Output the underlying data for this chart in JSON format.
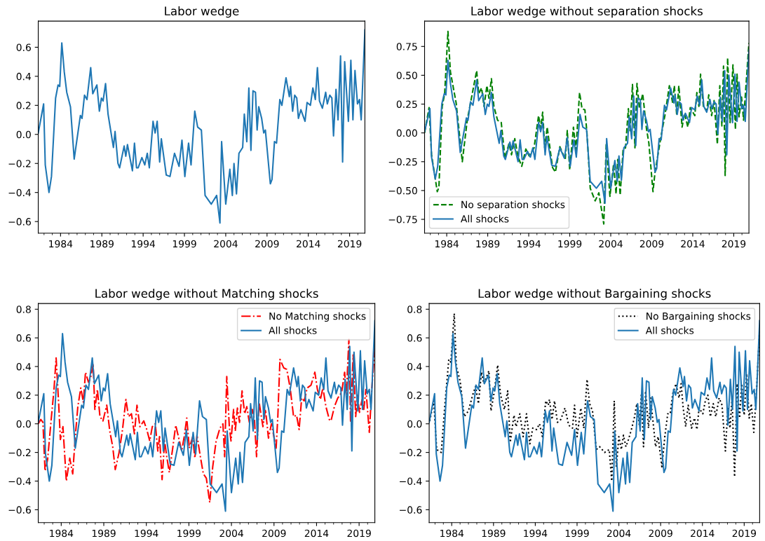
{
  "chart_data": [
    {
      "type": "line",
      "title": "Labor wedge",
      "xlim": [
        1981.3,
        2020.85
      ],
      "ylim": [
        -0.68,
        0.78
      ],
      "xticks": [
        1984,
        1989,
        1994,
        1999,
        2004,
        2009,
        2014,
        2019
      ],
      "yticks": [
        {
          "value": -0.6,
          "label": "−0.6"
        },
        {
          "value": -0.4,
          "label": "−0.4"
        },
        {
          "value": -0.2,
          "label": "−0.2"
        },
        {
          "value": 0.0,
          "label": "0.0"
        },
        {
          "value": 0.2,
          "label": "0.2"
        },
        {
          "value": 0.4,
          "label": "0.4"
        },
        {
          "value": 0.6,
          "label": "0.6"
        }
      ],
      "series": [
        {
          "color": "#1f77b4",
          "line_style": "solid",
          "x": [
            1981.3,
            1981.95,
            1982.15,
            1982.6,
            1982.9,
            1983.4,
            1983.7,
            1983.9,
            1984.15,
            1984.45,
            1984.75,
            1985.2,
            1985.65,
            1986.4,
            1986.6,
            1986.9,
            1987.2,
            1987.65,
            1987.9,
            1988.4,
            1988.7,
            1988.95,
            1989.15,
            1989.45,
            1989.75,
            1990.4,
            1990.6,
            1990.95,
            1991.15,
            1991.7,
            1991.9,
            1992.1,
            1992.7,
            1992.95,
            1993.2,
            1993.4,
            1993.85,
            1994.2,
            1994.5,
            1994.75,
            1995.2,
            1995.45,
            1995.7,
            1996.0,
            1996.2,
            1996.8,
            1997.25,
            1997.8,
            1998.35,
            1998.7,
            1999.05,
            1999.5,
            1999.8,
            2000.25,
            2000.6,
            2001.05,
            2001.5,
            2002.25,
            2002.9,
            2003.3,
            2003.5,
            2004.0,
            2004.5,
            2004.8,
            2005.0,
            2005.3,
            2005.6,
            2006.05,
            2006.25,
            2006.55,
            2006.8,
            2007.05,
            2007.3,
            2007.6,
            2007.8,
            2008.0,
            2008.35,
            2008.6,
            2008.8,
            2009.4,
            2009.6,
            2009.9,
            2010.15,
            2010.55,
            2010.8,
            2011.3,
            2011.7,
            2011.85,
            2012.1,
            2012.35,
            2012.6,
            2012.8,
            2013.1,
            2013.6,
            2013.85,
            2014.25,
            2014.55,
            2014.85,
            2015.1,
            2015.35,
            2015.7,
            2016.1,
            2016.3,
            2016.6,
            2016.85,
            2017.05,
            2017.35,
            2017.6,
            2017.9,
            2018.15,
            2018.4,
            2018.85,
            2019.15,
            2019.4,
            2019.65,
            2019.95,
            2020.2,
            2020.4,
            2020.85
          ],
          "values": [
            0.01,
            0.21,
            -0.21,
            -0.4,
            -0.29,
            0.25,
            0.34,
            0.33,
            0.63,
            0.43,
            0.29,
            0.19,
            -0.17,
            0.13,
            0.11,
            0.27,
            0.24,
            0.46,
            0.28,
            0.34,
            0.16,
            0.25,
            0.23,
            0.35,
            0.14,
            -0.09,
            0.02,
            -0.2,
            -0.23,
            -0.08,
            -0.15,
            -0.07,
            -0.25,
            -0.06,
            -0.23,
            -0.23,
            -0.16,
            -0.21,
            -0.13,
            -0.23,
            0.09,
            0.01,
            0.09,
            -0.19,
            -0.03,
            -0.28,
            -0.29,
            -0.13,
            -0.22,
            -0.04,
            -0.29,
            -0.06,
            -0.21,
            0.16,
            0.05,
            0.03,
            -0.42,
            -0.48,
            -0.42,
            -0.61,
            -0.05,
            -0.48,
            -0.24,
            -0.42,
            -0.2,
            -0.41,
            -0.13,
            -0.09,
            0.14,
            -0.05,
            0.32,
            -0.11,
            0.3,
            0.29,
            0.03,
            0.19,
            0.11,
            0.01,
            0.03,
            -0.34,
            -0.31,
            -0.05,
            -0.06,
            0.24,
            0.2,
            0.39,
            0.26,
            0.33,
            0.16,
            0.27,
            0.25,
            0.11,
            0.17,
            0.09,
            0.22,
            0.2,
            0.32,
            0.24,
            0.46,
            0.23,
            0.18,
            0.29,
            0.21,
            0.27,
            0.25,
            -0.01,
            0.31,
            0.1,
            0.54,
            -0.19,
            0.5,
            0.09,
            0.51,
            0.1,
            0.44,
            0.21,
            0.24,
            0.1,
            0.72
          ]
        }
      ]
    },
    {
      "type": "line",
      "title": "Labor wedge without separation shocks",
      "xlim": [
        1981.3,
        2020.85
      ],
      "ylim": [
        -0.87,
        0.97
      ],
      "xticks": [
        1984,
        1989,
        1994,
        1999,
        2004,
        2009,
        2014,
        2019
      ],
      "yticks": [
        {
          "value": -0.75,
          "label": "−0.75"
        },
        {
          "value": -0.5,
          "label": "−0.50"
        },
        {
          "value": -0.25,
          "label": "−0.25"
        },
        {
          "value": 0.0,
          "label": "0.00"
        },
        {
          "value": 0.25,
          "label": "0.25"
        },
        {
          "value": 0.5,
          "label": "0.50"
        },
        {
          "value": 0.75,
          "label": "0.75"
        }
      ],
      "legend": "bottom left",
      "series": [
        {
          "name": "No separation shocks",
          "color": "#008000",
          "line_style": "dashed",
          "x": [
            1981.3,
            1981.85,
            1982.15,
            1982.85,
            1983.05,
            1983.45,
            1983.75,
            1984.15,
            1984.45,
            1985.15,
            1985.9,
            1986.5,
            1986.9,
            1987.65,
            1987.9,
            1988.25,
            1988.55,
            1988.9,
            1989.15,
            1989.45,
            1989.75,
            1990.2,
            1990.65,
            1991.1,
            1991.6,
            1991.9,
            1992.3,
            1992.7,
            1993.15,
            1993.65,
            1994.05,
            1994.65,
            1995.2,
            1995.45,
            1995.7,
            1995.95,
            1996.25,
            1996.9,
            1997.25,
            1997.8,
            1998.45,
            1998.7,
            1999.0,
            1999.45,
            1999.75,
            2000.2,
            2000.5,
            2000.85,
            2001.1,
            2001.5,
            2002.1,
            2002.55,
            2003.15,
            2003.45,
            2003.9,
            2004.35,
            2004.65,
            2004.85,
            2005.15,
            2005.5,
            2005.8,
            2006.15,
            2006.35,
            2006.65,
            2006.95,
            2007.2,
            2007.5,
            2007.9,
            2008.35,
            2008.65,
            2009.15,
            2009.4,
            2009.85,
            2010.1,
            2010.6,
            2011.15,
            2011.55,
            2011.75,
            2012.05,
            2012.3,
            2012.7,
            2013.0,
            2013.4,
            2013.7,
            2014.25,
            2014.5,
            2014.75,
            2014.95,
            2015.3,
            2015.7,
            2015.95,
            2016.3,
            2016.6,
            2017.0,
            2017.3,
            2017.55,
            2017.75,
            2017.95,
            2018.25,
            2018.55,
            2018.9,
            2019.2,
            2019.4,
            2019.65,
            2019.95,
            2020.2,
            2020.85
          ],
          "values": [
            0.0,
            0.22,
            -0.19,
            -0.51,
            -0.47,
            0.23,
            0.34,
            0.88,
            0.53,
            0.26,
            -0.25,
            0.11,
            0.26,
            0.54,
            0.34,
            0.39,
            0.23,
            0.41,
            0.3,
            0.47,
            0.23,
            0.11,
            0.09,
            -0.22,
            -0.09,
            -0.19,
            -0.05,
            -0.21,
            -0.29,
            -0.14,
            -0.2,
            -0.13,
            0.15,
            0.04,
            0.18,
            -0.13,
            0.05,
            -0.3,
            -0.34,
            -0.12,
            -0.23,
            0.02,
            -0.32,
            0.05,
            -0.15,
            0.35,
            0.21,
            0.2,
            0.0,
            -0.48,
            -0.59,
            -0.52,
            -0.79,
            -0.09,
            -0.55,
            -0.27,
            -0.53,
            -0.23,
            -0.54,
            -0.15,
            -0.13,
            0.21,
            0.02,
            0.42,
            -0.13,
            0.43,
            0.21,
            0.34,
            0.04,
            -0.09,
            -0.51,
            -0.34,
            -0.15,
            -0.04,
            0.15,
            0.41,
            0.26,
            0.41,
            0.15,
            0.41,
            0.05,
            0.17,
            0.05,
            0.22,
            0.15,
            0.35,
            0.23,
            0.51,
            0.23,
            0.19,
            0.33,
            0.15,
            0.28,
            -0.1,
            0.41,
            0.06,
            0.58,
            -0.37,
            0.65,
            0.09,
            0.59,
            0.03,
            0.51,
            0.14,
            0.31,
            0.11,
            0.78
          ]
        },
        {
          "name": "All shocks",
          "color": "#1f77b4",
          "line_style": "solid",
          "x": [
            1981.3,
            1981.95,
            1982.15,
            1982.6,
            1982.9,
            1983.4,
            1983.7,
            1983.9,
            1984.15,
            1984.45,
            1984.75,
            1985.2,
            1985.65,
            1986.4,
            1986.6,
            1986.9,
            1987.2,
            1987.65,
            1987.9,
            1988.4,
            1988.7,
            1988.95,
            1989.15,
            1989.45,
            1989.75,
            1990.4,
            1990.6,
            1990.95,
            1991.15,
            1991.7,
            1991.9,
            1992.1,
            1992.7,
            1992.95,
            1993.2,
            1993.4,
            1993.85,
            1994.2,
            1994.5,
            1994.75,
            1995.2,
            1995.45,
            1995.7,
            1996.0,
            1996.2,
            1996.8,
            1997.25,
            1997.8,
            1998.35,
            1998.7,
            1999.05,
            1999.5,
            1999.8,
            2000.25,
            2000.6,
            2001.05,
            2001.5,
            2002.25,
            2002.9,
            2003.3,
            2003.5,
            2004.0,
            2004.5,
            2004.8,
            2005.0,
            2005.3,
            2005.6,
            2006.05,
            2006.25,
            2006.55,
            2006.8,
            2007.05,
            2007.3,
            2007.6,
            2007.8,
            2008.0,
            2008.35,
            2008.6,
            2008.8,
            2009.4,
            2009.6,
            2009.9,
            2010.15,
            2010.55,
            2010.8,
            2011.3,
            2011.7,
            2011.85,
            2012.1,
            2012.35,
            2012.6,
            2012.8,
            2013.1,
            2013.6,
            2013.85,
            2014.25,
            2014.55,
            2014.85,
            2015.1,
            2015.35,
            2015.7,
            2016.1,
            2016.3,
            2016.6,
            2016.85,
            2017.05,
            2017.35,
            2017.6,
            2017.9,
            2018.15,
            2018.4,
            2018.85,
            2019.15,
            2019.4,
            2019.65,
            2019.95,
            2020.2,
            2020.4,
            2020.85
          ],
          "values": [
            0.01,
            0.21,
            -0.21,
            -0.4,
            -0.29,
            0.25,
            0.34,
            0.33,
            0.63,
            0.43,
            0.29,
            0.19,
            -0.17,
            0.13,
            0.11,
            0.27,
            0.24,
            0.46,
            0.28,
            0.34,
            0.16,
            0.25,
            0.23,
            0.35,
            0.14,
            -0.09,
            0.02,
            -0.2,
            -0.23,
            -0.08,
            -0.15,
            -0.07,
            -0.25,
            -0.06,
            -0.23,
            -0.23,
            -0.16,
            -0.21,
            -0.13,
            -0.23,
            0.09,
            0.01,
            0.09,
            -0.19,
            -0.03,
            -0.28,
            -0.29,
            -0.13,
            -0.22,
            -0.04,
            -0.29,
            -0.06,
            -0.21,
            0.16,
            0.05,
            0.03,
            -0.42,
            -0.48,
            -0.42,
            -0.61,
            -0.05,
            -0.48,
            -0.24,
            -0.42,
            -0.2,
            -0.41,
            -0.13,
            -0.09,
            0.14,
            -0.05,
            0.32,
            -0.11,
            0.3,
            0.29,
            0.03,
            0.19,
            0.11,
            0.01,
            0.03,
            -0.34,
            -0.31,
            -0.05,
            -0.06,
            0.24,
            0.2,
            0.39,
            0.26,
            0.33,
            0.16,
            0.27,
            0.25,
            0.11,
            0.17,
            0.09,
            0.22,
            0.2,
            0.32,
            0.24,
            0.46,
            0.23,
            0.18,
            0.29,
            0.21,
            0.27,
            0.25,
            -0.01,
            0.31,
            0.1,
            0.54,
            -0.19,
            0.5,
            0.09,
            0.51,
            0.1,
            0.44,
            0.21,
            0.24,
            0.1,
            0.72
          ]
        }
      ]
    },
    {
      "type": "line",
      "title": "Labor wedge without Matching shocks",
      "xlim": [
        1981.3,
        2020.85
      ],
      "ylim": [
        -0.69,
        0.84
      ],
      "xticks": [
        1984,
        1989,
        1994,
        1999,
        2004,
        2009,
        2014,
        2019
      ],
      "yticks": [
        {
          "value": -0.6,
          "label": "−0.6"
        },
        {
          "value": -0.4,
          "label": "−0.4"
        },
        {
          "value": -0.2,
          "label": "−0.2"
        },
        {
          "value": 0.0,
          "label": "0.0"
        },
        {
          "value": 0.2,
          "label": "0.2"
        },
        {
          "value": 0.4,
          "label": "0.4"
        },
        {
          "value": 0.6,
          "label": "0.6"
        },
        {
          "value": 0.8,
          "label": "0.8"
        }
      ],
      "legend": "top right",
      "series": [
        {
          "name": "No Matching shocks",
          "color": "#ff0000",
          "line_style": "dashdot",
          "x": [
            1981.3,
            1981.6,
            1981.85,
            1982.1,
            1982.4,
            1982.85,
            1983.15,
            1983.4,
            1983.7,
            1983.9,
            1984.2,
            1984.6,
            1985.0,
            1985.35,
            1985.65,
            1985.95,
            1986.3,
            1986.6,
            1986.85,
            1987.2,
            1987.45,
            1987.75,
            1987.95,
            1988.25,
            1988.55,
            1988.9,
            1989.35,
            1989.7,
            1990.05,
            1990.35,
            1990.8,
            1991.2,
            1991.6,
            1991.9,
            1992.25,
            1992.6,
            1992.9,
            1993.25,
            1993.7,
            1994.05,
            1994.4,
            1994.7,
            1995.05,
            1995.35,
            1995.55,
            1995.85,
            1996.15,
            1996.4,
            1996.7,
            1997.1,
            1997.45,
            1997.85,
            1998.15,
            1998.45,
            1998.75,
            1999.05,
            1999.45,
            1999.7,
            1999.95,
            2000.35,
            2000.7,
            2001.05,
            2001.45,
            2001.8,
            2002.2,
            2002.65,
            2003.0,
            2003.2,
            2003.45,
            2003.75,
            2003.95,
            2004.25,
            2004.45,
            2004.7,
            2004.95,
            2005.25,
            2005.55,
            2005.8,
            2006.1,
            2006.45,
            2006.7,
            2006.95,
            2007.25,
            2007.7,
            2008.0,
            2008.35,
            2008.7,
            2009.25,
            2009.45,
            2009.7,
            2010.15,
            2010.5,
            2010.9,
            2011.3,
            2011.65,
            2011.95,
            2012.25,
            2012.55,
            2012.9,
            2013.35,
            2013.8,
            2014.1,
            2014.45,
            2014.75,
            2015.1,
            2015.5,
            2015.7,
            2016.1,
            2016.5,
            2016.95,
            2017.3,
            2017.5,
            2017.8,
            2018.0,
            2018.3,
            2018.6,
            2018.8,
            2019.05,
            2019.35,
            2019.55,
            2019.8,
            2020.2,
            2020.5,
            2020.85
          ],
          "values": [
            0.0,
            0.03,
            0.01,
            -0.33,
            -0.25,
            0.05,
            0.24,
            0.46,
            0.14,
            -0.11,
            -0.02,
            -0.4,
            -0.24,
            -0.35,
            -0.09,
            0.12,
            0.25,
            0.15,
            0.36,
            0.29,
            0.32,
            0.42,
            0.1,
            0.24,
            0.05,
            0.02,
            0.13,
            -0.05,
            -0.16,
            -0.32,
            -0.2,
            -0.04,
            0.17,
            0.05,
            0.07,
            -0.07,
            0.13,
            -0.02,
            0.02,
            -0.04,
            -0.12,
            -0.02,
            0.0,
            -0.19,
            -0.09,
            -0.39,
            -0.12,
            -0.23,
            -0.34,
            -0.17,
            -0.01,
            -0.11,
            -0.19,
            -0.09,
            0.04,
            -0.17,
            -0.09,
            -0.24,
            -0.08,
            -0.23,
            -0.35,
            -0.38,
            -0.55,
            -0.3,
            -0.12,
            -0.03,
            0.0,
            -0.23,
            0.33,
            -0.02,
            -0.12,
            0.1,
            -0.05,
            0.11,
            0.01,
            0.23,
            0.07,
            0.12,
            0.01,
            0.1,
            0.03,
            -0.23,
            0.15,
            -0.02,
            0.1,
            -0.1,
            0.0,
            -0.17,
            0.05,
            0.45,
            0.39,
            0.38,
            0.25,
            0.05,
            0.06,
            -0.04,
            0.18,
            0.16,
            0.25,
            0.27,
            0.36,
            0.24,
            0.17,
            0.25,
            0.12,
            0.03,
            0.02,
            0.12,
            0.18,
            0.22,
            0.36,
            0.2,
            0.59,
            0.01,
            0.48,
            0.05,
            0.2,
            0.08,
            0.17,
            0.1,
            0.24,
            -0.06,
            0.25,
            0.53
          ]
        },
        {
          "name": "All shocks",
          "color": "#1f77b4",
          "line_style": "solid",
          "x": [
            1981.3,
            1981.95,
            1982.15,
            1982.6,
            1982.9,
            1983.4,
            1983.7,
            1983.9,
            1984.15,
            1984.45,
            1984.75,
            1985.2,
            1985.65,
            1986.4,
            1986.6,
            1986.9,
            1987.2,
            1987.65,
            1987.9,
            1988.4,
            1988.7,
            1988.95,
            1989.15,
            1989.45,
            1989.75,
            1990.4,
            1990.6,
            1990.95,
            1991.15,
            1991.7,
            1991.9,
            1992.1,
            1992.7,
            1992.95,
            1993.2,
            1993.4,
            1993.85,
            1994.2,
            1994.5,
            1994.75,
            1995.2,
            1995.45,
            1995.7,
            1996.0,
            1996.2,
            1996.8,
            1997.25,
            1997.8,
            1998.35,
            1998.7,
            1999.05,
            1999.5,
            1999.8,
            2000.25,
            2000.6,
            2001.05,
            2001.5,
            2002.25,
            2002.9,
            2003.3,
            2003.5,
            2004.0,
            2004.5,
            2004.8,
            2005.0,
            2005.3,
            2005.6,
            2006.05,
            2006.25,
            2006.55,
            2006.8,
            2007.05,
            2007.3,
            2007.6,
            2007.8,
            2008.0,
            2008.35,
            2008.6,
            2008.8,
            2009.4,
            2009.6,
            2009.9,
            2010.15,
            2010.55,
            2010.8,
            2011.3,
            2011.7,
            2011.85,
            2012.1,
            2012.35,
            2012.6,
            2012.8,
            2013.1,
            2013.6,
            2013.85,
            2014.25,
            2014.55,
            2014.85,
            2015.1,
            2015.35,
            2015.7,
            2016.1,
            2016.3,
            2016.6,
            2016.85,
            2017.05,
            2017.35,
            2017.6,
            2017.9,
            2018.15,
            2018.4,
            2018.85,
            2019.15,
            2019.4,
            2019.65,
            2019.95,
            2020.2,
            2020.4,
            2020.85
          ],
          "values": [
            0.01,
            0.21,
            -0.21,
            -0.4,
            -0.29,
            0.25,
            0.34,
            0.33,
            0.63,
            0.43,
            0.29,
            0.19,
            -0.17,
            0.13,
            0.11,
            0.27,
            0.24,
            0.46,
            0.28,
            0.34,
            0.16,
            0.25,
            0.23,
            0.35,
            0.14,
            -0.09,
            0.02,
            -0.2,
            -0.23,
            -0.08,
            -0.15,
            -0.07,
            -0.25,
            -0.06,
            -0.23,
            -0.23,
            -0.16,
            -0.21,
            -0.13,
            -0.23,
            0.09,
            0.01,
            0.09,
            -0.19,
            -0.03,
            -0.28,
            -0.29,
            -0.13,
            -0.22,
            -0.04,
            -0.29,
            -0.06,
            -0.21,
            0.16,
            0.05,
            0.03,
            -0.42,
            -0.48,
            -0.42,
            -0.61,
            -0.05,
            -0.48,
            -0.24,
            -0.42,
            -0.2,
            -0.41,
            -0.13,
            -0.09,
            0.14,
            -0.05,
            0.32,
            -0.11,
            0.3,
            0.29,
            0.03,
            0.19,
            0.11,
            0.01,
            0.03,
            -0.34,
            -0.31,
            -0.05,
            -0.06,
            0.24,
            0.2,
            0.39,
            0.26,
            0.33,
            0.16,
            0.27,
            0.25,
            0.11,
            0.17,
            0.09,
            0.22,
            0.2,
            0.32,
            0.24,
            0.46,
            0.23,
            0.18,
            0.29,
            0.21,
            0.27,
            0.25,
            -0.01,
            0.31,
            0.1,
            0.54,
            -0.19,
            0.5,
            0.09,
            0.51,
            0.1,
            0.44,
            0.21,
            0.24,
            0.1,
            0.72
          ]
        }
      ]
    },
    {
      "type": "line",
      "title": "Labor wedge without Bargaining shocks",
      "xlim": [
        1981.3,
        2020.85
      ],
      "ylim": [
        -0.69,
        0.84
      ],
      "xticks": [
        1984,
        1989,
        1994,
        1999,
        2004,
        2009,
        2014,
        2019
      ],
      "yticks": [
        {
          "value": -0.6,
          "label": "−0.6"
        },
        {
          "value": -0.4,
          "label": "−0.4"
        },
        {
          "value": -0.2,
          "label": "−0.2"
        },
        {
          "value": 0.0,
          "label": "0.0"
        },
        {
          "value": 0.2,
          "label": "0.2"
        },
        {
          "value": 0.4,
          "label": "0.4"
        },
        {
          "value": 0.6,
          "label": "0.6"
        },
        {
          "value": 0.8,
          "label": "0.8"
        }
      ],
      "legend": "top right",
      "series": [
        {
          "name": "No Bargaining shocks",
          "color": "#000000",
          "line_style": "dotted",
          "x": [
            1981.37,
            1981.85,
            1982.2,
            1982.75,
            1983.15,
            1983.65,
            1983.9,
            1984.3,
            1984.55,
            1985.0,
            1985.5,
            1986.0,
            1986.5,
            1986.85,
            1987.2,
            1987.55,
            1987.85,
            1988.45,
            1988.7,
            1989.05,
            1989.5,
            1989.85,
            1990.3,
            1990.7,
            1991.0,
            1991.45,
            1991.7,
            1992.15,
            1992.55,
            1992.95,
            1993.35,
            1993.7,
            1994.15,
            1994.5,
            1994.85,
            1995.25,
            1995.55,
            1995.7,
            1996.0,
            1996.3,
            1996.65,
            1997.05,
            1997.55,
            1998.0,
            1998.45,
            1998.7,
            1999.0,
            1999.45,
            1999.8,
            2000.2,
            2000.5,
            2000.85,
            2001.3,
            2001.7,
            2002.3,
            2002.85,
            2003.15,
            2003.45,
            2003.7,
            2004.0,
            2004.3,
            2004.55,
            2004.85,
            2005.15,
            2005.5,
            2005.85,
            2006.15,
            2006.45,
            2006.7,
            2006.95,
            2007.2,
            2007.55,
            2007.8,
            2008.1,
            2008.4,
            2008.7,
            2009.15,
            2009.5,
            2009.85,
            2010.15,
            2010.45,
            2010.85,
            2011.2,
            2011.45,
            2011.7,
            2012.0,
            2012.3,
            2012.7,
            2013.05,
            2013.35,
            2013.6,
            2014.05,
            2014.35,
            2014.65,
            2014.95,
            2015.3,
            2015.6,
            2016.0,
            2016.35,
            2016.75,
            2017.05,
            2017.3,
            2017.55,
            2017.85,
            2018.15,
            2018.45,
            2018.7,
            2019.0,
            2019.3,
            2019.6,
            2019.85,
            2020.15,
            2020.45,
            2020.85
          ],
          "values": [
            0.02,
            0.16,
            -0.18,
            -0.2,
            0.11,
            0.45,
            0.43,
            0.77,
            0.4,
            0.3,
            0.05,
            0.09,
            0.2,
            0.26,
            0.14,
            0.36,
            0.28,
            0.37,
            0.09,
            0.21,
            0.41,
            0.2,
            0.1,
            0.23,
            -0.13,
            0.06,
            -0.02,
            0.07,
            -0.09,
            0.07,
            -0.14,
            -0.03,
            -0.04,
            0.0,
            -0.09,
            0.16,
            0.13,
            0.17,
            0.03,
            0.16,
            0.01,
            0.03,
            0.11,
            -0.01,
            -0.03,
            0.13,
            -0.09,
            0.11,
            -0.03,
            0.31,
            0.14,
            0.09,
            -0.18,
            -0.16,
            -0.2,
            -0.18,
            -0.4,
            0.16,
            -0.3,
            -0.09,
            -0.18,
            -0.08,
            -0.16,
            -0.11,
            -0.04,
            0.04,
            0.14,
            -0.01,
            0.21,
            -0.16,
            0.23,
            -0.03,
            0.18,
            0.01,
            -0.16,
            -0.09,
            -0.3,
            -0.09,
            0.07,
            0.07,
            0.21,
            0.28,
            0.18,
            0.28,
            0.11,
            -0.02,
            0.13,
            -0.03,
            0.04,
            -0.04,
            0.11,
            0.07,
            0.16,
            0.2,
            0.05,
            0.14,
            0.05,
            0.18,
            0.13,
            -0.19,
            0.11,
            -0.03,
            0.18,
            -0.37,
            0.28,
            0.04,
            0.28,
            0.06,
            0.35,
            0.04,
            0.14,
            -0.06,
            0.2,
            0.66
          ]
        },
        {
          "name": "All shocks",
          "color": "#1f77b4",
          "line_style": "solid",
          "x": [
            1981.3,
            1981.95,
            1982.15,
            1982.6,
            1982.9,
            1983.4,
            1983.7,
            1983.9,
            1984.15,
            1984.45,
            1984.75,
            1985.2,
            1985.65,
            1986.4,
            1986.6,
            1986.9,
            1987.2,
            1987.65,
            1987.9,
            1988.4,
            1988.7,
            1988.95,
            1989.15,
            1989.45,
            1989.75,
            1990.4,
            1990.6,
            1990.95,
            1991.15,
            1991.7,
            1991.9,
            1992.1,
            1992.7,
            1992.95,
            1993.2,
            1993.4,
            1993.85,
            1994.2,
            1994.5,
            1994.75,
            1995.2,
            1995.45,
            1995.7,
            1996.0,
            1996.2,
            1996.8,
            1997.25,
            1997.8,
            1998.35,
            1998.7,
            1999.05,
            1999.5,
            1999.8,
            2000.25,
            2000.6,
            2001.05,
            2001.5,
            2002.25,
            2002.9,
            2003.3,
            2003.5,
            2004.0,
            2004.5,
            2004.8,
            2005.0,
            2005.3,
            2005.6,
            2006.05,
            2006.25,
            2006.55,
            2006.8,
            2007.05,
            2007.3,
            2007.6,
            2007.8,
            2008.0,
            2008.35,
            2008.6,
            2008.8,
            2009.4,
            2009.6,
            2009.9,
            2010.15,
            2010.55,
            2010.8,
            2011.3,
            2011.7,
            2011.85,
            2012.1,
            2012.35,
            2012.6,
            2012.8,
            2013.1,
            2013.6,
            2013.85,
            2014.25,
            2014.55,
            2014.85,
            2015.1,
            2015.35,
            2015.7,
            2016.1,
            2016.3,
            2016.6,
            2016.85,
            2017.05,
            2017.35,
            2017.6,
            2017.9,
            2018.15,
            2018.4,
            2018.85,
            2019.15,
            2019.4,
            2019.65,
            2019.95,
            2020.2,
            2020.4,
            2020.85
          ],
          "values": [
            0.01,
            0.21,
            -0.21,
            -0.4,
            -0.29,
            0.25,
            0.34,
            0.33,
            0.63,
            0.43,
            0.29,
            0.19,
            -0.17,
            0.13,
            0.11,
            0.27,
            0.24,
            0.46,
            0.28,
            0.34,
            0.16,
            0.25,
            0.23,
            0.35,
            0.14,
            -0.09,
            0.02,
            -0.2,
            -0.23,
            -0.08,
            -0.15,
            -0.07,
            -0.25,
            -0.06,
            -0.23,
            -0.23,
            -0.16,
            -0.21,
            -0.13,
            -0.23,
            0.09,
            0.01,
            0.09,
            -0.19,
            -0.03,
            -0.28,
            -0.29,
            -0.13,
            -0.22,
            -0.04,
            -0.29,
            -0.06,
            -0.21,
            0.16,
            0.05,
            0.03,
            -0.42,
            -0.48,
            -0.42,
            -0.61,
            -0.05,
            -0.48,
            -0.24,
            -0.42,
            -0.2,
            -0.41,
            -0.13,
            -0.09,
            0.14,
            -0.05,
            0.32,
            -0.11,
            0.3,
            0.29,
            0.03,
            0.19,
            0.11,
            0.01,
            0.03,
            -0.34,
            -0.31,
            -0.05,
            -0.06,
            0.24,
            0.2,
            0.39,
            0.26,
            0.33,
            0.16,
            0.27,
            0.25,
            0.11,
            0.17,
            0.09,
            0.22,
            0.2,
            0.32,
            0.24,
            0.46,
            0.23,
            0.18,
            0.29,
            0.21,
            0.27,
            0.25,
            -0.01,
            0.31,
            0.1,
            0.54,
            -0.19,
            0.5,
            0.09,
            0.51,
            0.1,
            0.44,
            0.21,
            0.24,
            0.1,
            0.72
          ]
        }
      ]
    }
  ]
}
